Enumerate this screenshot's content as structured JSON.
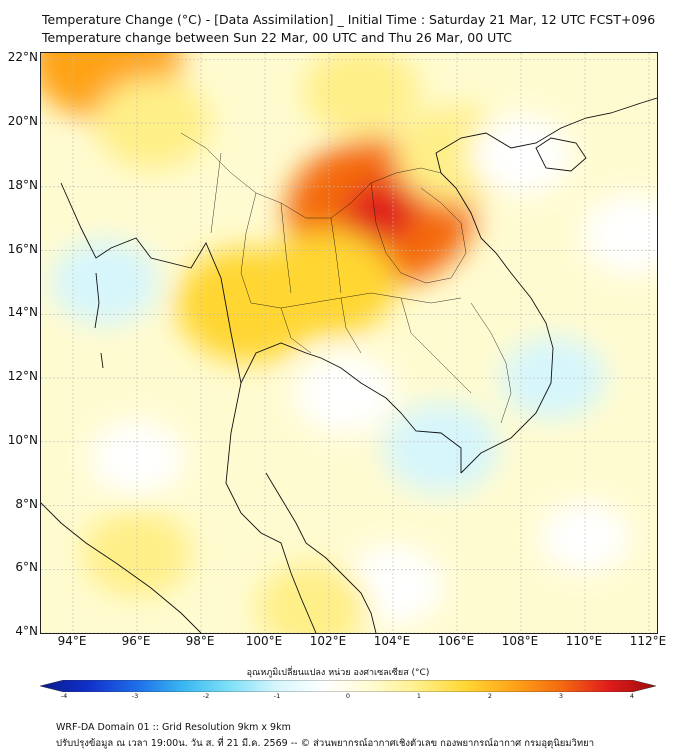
{
  "header": {
    "title_line1": "Temperature Change (°C) - [Data Assimilation] _ Initial Time : Saturday 21 Mar, 12 UTC FCST+096",
    "title_line2": "Temperature change between Sun 22 Mar, 00 UTC and Thu 26 Mar, 00 UTC"
  },
  "map": {
    "lat_labels": [
      "22°N",
      "20°N",
      "18°N",
      "16°N",
      "14°N",
      "12°N",
      "10°N",
      "8°N",
      "6°N",
      "4°N"
    ],
    "lon_labels": [
      "94°E",
      "96°E",
      "98°E",
      "100°E",
      "102°E",
      "104°E",
      "106°E",
      "108°E",
      "110°E",
      "112°E"
    ],
    "field": {
      "variable": "temperature change",
      "unit": "°C",
      "background_value": 0.4,
      "anomalies": [
        {
          "region": "Northeast Thailand / Laos (Khorat Plateau)",
          "lon": 103.6,
          "lat": 17.2,
          "value": 3.0
        },
        {
          "region": "Central Thailand / Cambodia",
          "lon": 102.0,
          "lat": 15.0,
          "value": 1.5
        },
        {
          "region": "Western Thailand",
          "lon": 99.5,
          "lat": 14.3,
          "value": 1.8
        },
        {
          "region": "Northern Vietnam",
          "lon": 106.0,
          "lat": 19.0,
          "value": 1.2
        },
        {
          "region": "South China",
          "lon": 103.0,
          "lat": 21.0,
          "value": 1.0
        },
        {
          "region": "North Myanmar",
          "lon": 95.0,
          "lat": 22.0,
          "value": 2.0
        },
        {
          "region": "Andaman Sea",
          "lon": 95.0,
          "lat": 15.0,
          "value": -0.8
        },
        {
          "region": "Gulf of Thailand",
          "lon": 102.5,
          "lat": 11.5,
          "value": -0.6
        },
        {
          "region": "Mekong Delta",
          "lon": 105.5,
          "lat": 9.8,
          "value": -1.0
        },
        {
          "region": "South China Sea",
          "lon": 109.0,
          "lat": 12.0,
          "value": -0.7
        },
        {
          "region": "Gulf of Tonkin",
          "lon": 108.0,
          "lat": 19.0,
          "value": -0.6
        },
        {
          "region": "South China Sea east",
          "lon": 111.5,
          "lat": 16.5,
          "value": -0.6
        },
        {
          "region": "Andaman Sea south",
          "lon": 96.0,
          "lat": 9.5,
          "value": -0.4
        },
        {
          "region": "Malay Peninsula east",
          "lon": 104.0,
          "lat": 5.5,
          "value": -0.6
        },
        {
          "region": "Malay Peninsula south",
          "lon": 101.5,
          "lat": 4.8,
          "value": 0.9
        },
        {
          "region": "Far south Andaman",
          "lon": 96.0,
          "lat": 6.5,
          "value": 0.8
        },
        {
          "region": "South China Sea south",
          "lon": 110.0,
          "lat": 7.0,
          "value": -0.3
        },
        {
          "region": "North Myanmar west",
          "lon": 96.5,
          "lat": 20.0,
          "value": 1.0
        },
        {
          "region": "Bay of Bengal",
          "lon": 93.5,
          "lat": 18.0,
          "value": 0.0
        }
      ]
    }
  },
  "colorbar": {
    "title": "อุณหภูมิเปลี่ยนแปลง หน่วย องศาเซลเซียส (°C)",
    "min": -4,
    "max": 4,
    "ticks": [
      "-4",
      "-3",
      "-2",
      "-1",
      "0",
      "1",
      "2",
      "3",
      "4"
    ],
    "stops": [
      "#0a1a8c",
      "#1030c8",
      "#1e6ae8",
      "#38b6f0",
      "#7ee0f8",
      "#d6f6fc",
      "#ffffff",
      "#fffbd0",
      "#ffef88",
      "#ffd633",
      "#ffa319",
      "#f46a10",
      "#e01c1c",
      "#9c0a0a"
    ]
  },
  "footer": {
    "line1": "WRF-DA Domain 01 :: Grid Resolution 9km x 9km",
    "line2": "ปรับปรุงข้อมูล ณ เวลา 19:00น. วัน ส. ที่ 21 มี.ค. 2569 -- © ส่วนพยากรณ์อากาศเชิงตัวเลข กองพยากรณ์อากาศ กรมอุตุนิยมวิทยา"
  }
}
